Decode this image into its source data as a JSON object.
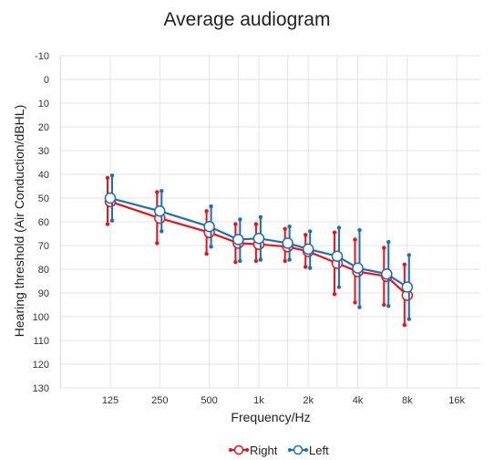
{
  "chart_data": {
    "type": "line",
    "title": "Average audiogram",
    "xlabel": "Frequency/Hz",
    "ylabel": "Hearing threshold (Air Conduction/dBHL)",
    "x_ticks": [
      "125",
      "250",
      "500",
      "1k",
      "2k",
      "4k",
      "8k",
      "16k"
    ],
    "y_ticks": [
      -10,
      0,
      10,
      20,
      30,
      40,
      50,
      60,
      70,
      80,
      90,
      100,
      110,
      120,
      130
    ],
    "ylim": [
      -10,
      130
    ],
    "y_inverted": true,
    "x_scale": "log2",
    "grid": true,
    "legend_position": "bottom",
    "series": [
      {
        "name": "Right",
        "color": "#e8131b",
        "points": [
          {
            "x": 125,
            "y": 51.5,
            "low": 41.5,
            "high": 61
          },
          {
            "x": 250,
            "y": 58.5,
            "low": 47.5,
            "high": 69
          },
          {
            "x": 500,
            "y": 64.5,
            "low": 55.5,
            "high": 73.5
          },
          {
            "x": 750,
            "y": 69,
            "low": 61,
            "high": 77
          },
          {
            "x": 1000,
            "y": 69.5,
            "low": 61,
            "high": 76.5
          },
          {
            "x": 1500,
            "y": 70.5,
            "low": 63,
            "high": 76.5
          },
          {
            "x": 2000,
            "y": 72.5,
            "low": 65.5,
            "high": 79
          },
          {
            "x": 3000,
            "y": 77.5,
            "low": 64.5,
            "high": 90.5
          },
          {
            "x": 4000,
            "y": 81,
            "low": 67.5,
            "high": 94
          },
          {
            "x": 6000,
            "y": 83,
            "low": 71,
            "high": 95
          },
          {
            "x": 8000,
            "y": 91,
            "low": 78,
            "high": 103.5
          }
        ]
      },
      {
        "name": "Left",
        "color": "#1f6fb2",
        "points": [
          {
            "x": 125,
            "y": 50,
            "low": 40.5,
            "high": 59.5
          },
          {
            "x": 250,
            "y": 55.5,
            "low": 47,
            "high": 64
          },
          {
            "x": 500,
            "y": 62,
            "low": 53.5,
            "high": 70.5
          },
          {
            "x": 750,
            "y": 67.5,
            "low": 59,
            "high": 76.5
          },
          {
            "x": 1000,
            "y": 67,
            "low": 58,
            "high": 76
          },
          {
            "x": 1500,
            "y": 69,
            "low": 62,
            "high": 76
          },
          {
            "x": 2000,
            "y": 71.5,
            "low": 64,
            "high": 79.5
          },
          {
            "x": 3000,
            "y": 74.5,
            "low": 62.5,
            "high": 87.5
          },
          {
            "x": 4000,
            "y": 79.5,
            "low": 63.5,
            "high": 96
          },
          {
            "x": 6000,
            "y": 82,
            "low": 68.5,
            "high": 95.5
          },
          {
            "x": 8000,
            "y": 87.5,
            "low": 74,
            "high": 101
          }
        ]
      }
    ]
  }
}
